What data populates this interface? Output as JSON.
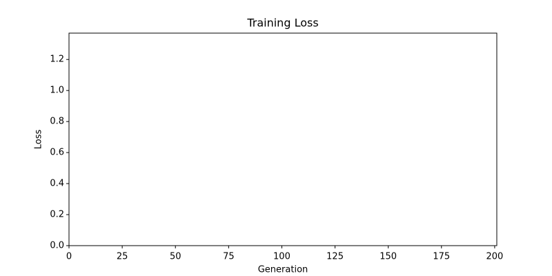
{
  "chart_data": {
    "type": "line",
    "title": "Training Loss",
    "x_label": "Generation",
    "y_label": "Loss",
    "series": [],
    "xlim": [
      0,
      201
    ],
    "xticks": [
      0,
      25,
      50,
      75,
      100,
      125,
      150,
      175,
      200
    ],
    "ylim": [
      0,
      1.37
    ],
    "yticks": [
      {
        "value": 0,
        "label": "0.0"
      },
      0.2,
      0.4,
      0.6,
      0.8,
      {
        "value": 1,
        "label": "1.0"
      },
      1.2
    ],
    "grid": false
  }
}
